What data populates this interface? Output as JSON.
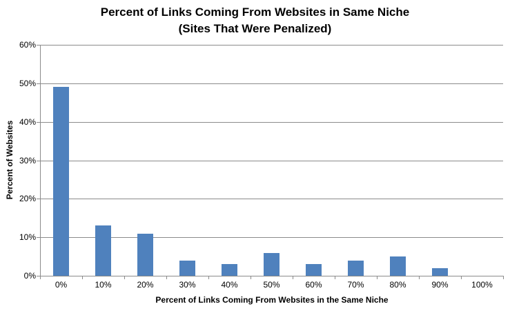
{
  "chart_data": {
    "type": "bar",
    "title": "Percent of Links Coming From Websites in Same Niche",
    "subtitle": "(Sites That Were Penalized)",
    "xlabel": "Percent of Links Coming From Websites in the Same Niche",
    "ylabel": "Percent of Websites",
    "categories": [
      "0%",
      "10%",
      "20%",
      "30%",
      "40%",
      "50%",
      "60%",
      "70%",
      "80%",
      "90%",
      "100%"
    ],
    "values": [
      49,
      13,
      11,
      4,
      3,
      6,
      3,
      4,
      5,
      2,
      0
    ],
    "y_ticks": [
      {
        "label": "0%",
        "value": 0
      },
      {
        "label": "10%",
        "value": 10
      },
      {
        "label": "20%",
        "value": 20
      },
      {
        "label": "30%",
        "value": 30
      },
      {
        "label": "40%",
        "value": 40
      },
      {
        "label": "50%",
        "value": 50
      },
      {
        "label": "60%",
        "value": 60
      }
    ],
    "ylim": [
      0,
      60
    ],
    "grid": "on",
    "legend": "none",
    "bar_color": "#4f81bd",
    "grid_color": "#8a8a8a",
    "axis_color": "#8a8a8a",
    "text_color": "#000000",
    "background_color": "#ffffff"
  }
}
